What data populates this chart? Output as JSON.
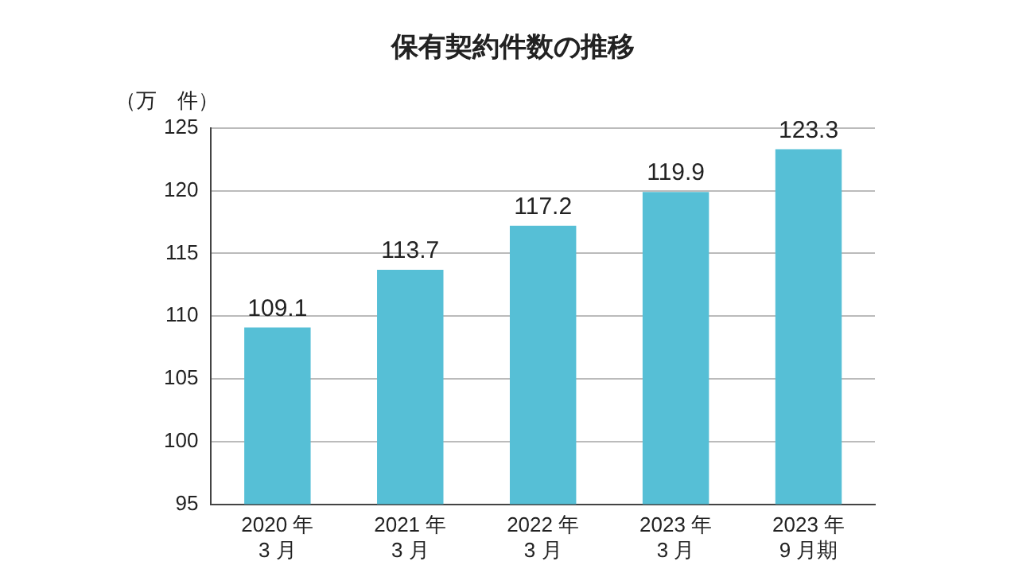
{
  "chart_data": {
    "type": "bar",
    "title": "保有契約件数の推移",
    "ylabel": "（万　件）",
    "categories": [
      "2020 年\n3 月",
      "2021 年\n3 月",
      "2022 年\n3 月",
      "2023 年\n3 月",
      "2023 年\n9 月期"
    ],
    "values": [
      109.1,
      113.7,
      117.2,
      119.9,
      123.3
    ],
    "color": "#56bfd6",
    "ylim": [
      95,
      125
    ],
    "yticks": [
      95,
      100,
      105,
      110,
      115,
      120,
      125
    ],
    "grid": "y",
    "data_labels": true,
    "legend": false
  }
}
